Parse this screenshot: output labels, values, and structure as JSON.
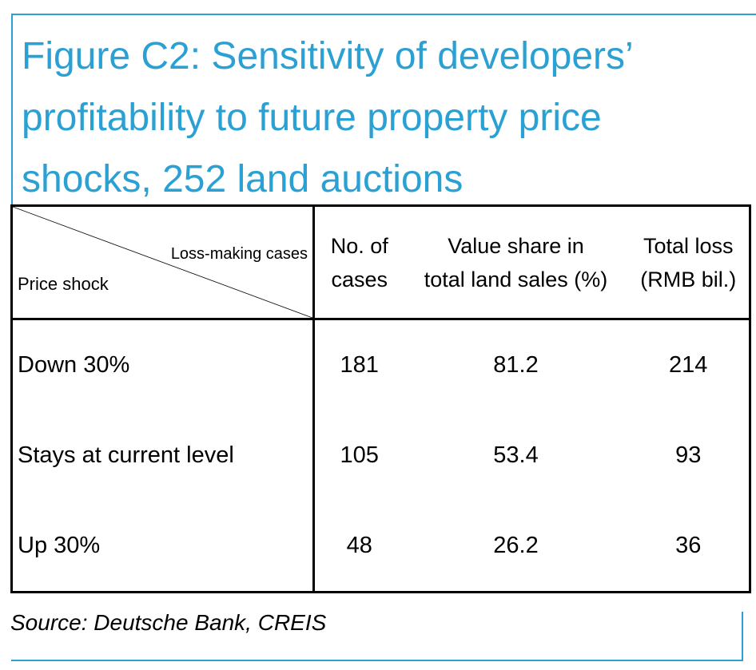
{
  "figure": {
    "title": "Figure C2: Sensitivity of developers’ profitability to future property price shocks, 252 land auctions",
    "source": "Source: Deutsche Bank, CREIS"
  },
  "table": {
    "corner": {
      "top_label": "Loss-making cases",
      "bottom_label": "Price shock"
    },
    "columns": [
      {
        "line1": "No. of",
        "line2": "cases"
      },
      {
        "line1": "Value share in",
        "line2": "total land sales (%)"
      },
      {
        "line1": "Total loss",
        "line2": "(RMB bil.)"
      }
    ],
    "rows": [
      {
        "label": "Down 30%",
        "cases": "181",
        "value_share": "81.2",
        "total_loss": "214"
      },
      {
        "label": "Stays at current level",
        "cases": "105",
        "value_share": "53.4",
        "total_loss": "93"
      },
      {
        "label": "Up 30%",
        "cases": "48",
        "value_share": "26.2",
        "total_loss": "36"
      }
    ]
  },
  "colors": {
    "accent": "#2aa0d3",
    "border": "#000000",
    "text": "#000000"
  }
}
